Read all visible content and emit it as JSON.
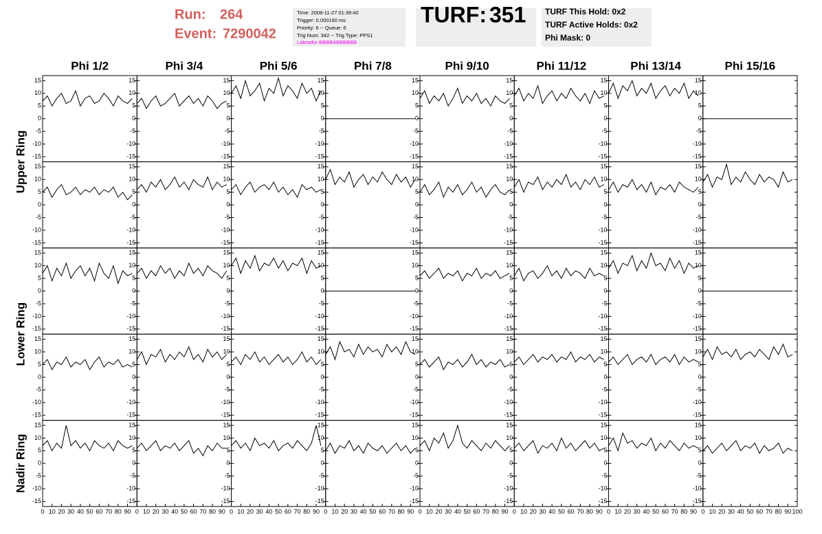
{
  "header": {
    "run_label": "Run:",
    "run": 264,
    "event_label": "Event:",
    "event": 7290042,
    "info": [
      "Time: 2008-11-27 01:39:40",
      "Trigger: 0.000160 ms",
      "Priority: 6 -- Queue: 6",
      "Trig Num: 342 -- Trig Type: PPS1"
    ],
    "labrador": "Labrador BBBBABBBBBB",
    "turf_label": "TURF:",
    "turf": 351,
    "turf_info": [
      "TURF This Hold: 0x2",
      "TURF Active Holds: 0x2",
      "Phi Mask: 0"
    ]
  },
  "grid": {
    "columns": [
      "Phi 1/2",
      "Phi 3/4",
      "Phi 5/6",
      "Phi 7/8",
      "Phi 9/10",
      "Phi 11/12",
      "Phi 13/14",
      "Phi 15/16"
    ],
    "row_labels": [
      "Upper Ring",
      "Lower Ring",
      "Nadir Ring"
    ],
    "ylim": [
      -17,
      17
    ],
    "yticks": [
      -15,
      -10,
      -5,
      0,
      5,
      10,
      15
    ],
    "xlim": [
      0,
      100
    ],
    "xticks": [
      0,
      10,
      20,
      30,
      40,
      50,
      60,
      70,
      80,
      90,
      100
    ],
    "x": [
      0,
      5,
      10,
      15,
      20,
      25,
      30,
      35,
      40,
      45,
      50,
      55,
      60,
      65,
      70,
      75,
      80,
      85,
      90,
      95
    ],
    "panels": [
      [
        [
          7,
          9,
          5,
          8,
          10,
          6,
          7,
          11,
          5,
          8,
          9,
          6,
          7,
          10,
          8,
          5,
          9,
          7,
          6,
          8
        ],
        [
          6,
          8,
          4,
          7,
          9,
          5,
          6,
          8,
          10,
          5,
          7,
          9,
          6,
          8,
          5,
          9,
          7,
          4,
          6,
          7
        ],
        [
          10,
          13,
          8,
          15,
          9,
          11,
          14,
          7,
          12,
          10,
          16,
          9,
          13,
          11,
          8,
          14,
          10,
          12,
          7,
          11
        ],
        [
          0,
          0,
          0,
          0,
          0,
          0,
          0,
          0,
          0,
          0,
          0,
          0,
          0,
          0,
          0,
          0,
          0,
          0,
          0,
          0
        ],
        [
          8,
          11,
          6,
          9,
          7,
          10,
          5,
          8,
          12,
          6,
          9,
          7,
          10,
          6,
          8,
          5,
          9,
          7,
          6,
          8
        ],
        [
          9,
          12,
          7,
          10,
          8,
          13,
          6,
          9,
          11,
          7,
          10,
          8,
          12,
          9,
          7,
          10,
          6,
          11,
          8,
          9
        ],
        [
          10,
          14,
          8,
          13,
          11,
          15,
          9,
          12,
          10,
          14,
          8,
          11,
          13,
          9,
          12,
          10,
          14,
          8,
          11,
          9
        ],
        [
          0,
          0,
          0,
          0,
          0,
          0,
          0,
          0,
          0,
          0,
          0,
          0,
          0,
          0,
          0,
          0,
          0,
          0,
          0,
          0
        ]
      ],
      [
        [
          5,
          7,
          3,
          6,
          8,
          4,
          5,
          7,
          4,
          6,
          5,
          7,
          4,
          6,
          5,
          7,
          3,
          5,
          2,
          4
        ],
        [
          6,
          8,
          5,
          9,
          7,
          10,
          6,
          8,
          11,
          7,
          9,
          6,
          10,
          8,
          7,
          11,
          6,
          9,
          7,
          8
        ],
        [
          6,
          8,
          4,
          7,
          9,
          5,
          7,
          8,
          6,
          9,
          5,
          7,
          4,
          6,
          3,
          8,
          6,
          7,
          5,
          6
        ],
        [
          10,
          14,
          8,
          11,
          9,
          13,
          7,
          10,
          12,
          8,
          11,
          9,
          13,
          10,
          8,
          12,
          9,
          11,
          7,
          10
        ],
        [
          5,
          8,
          4,
          6,
          9,
          3,
          7,
          5,
          8,
          4,
          6,
          9,
          5,
          7,
          3,
          6,
          8,
          5,
          4,
          6
        ],
        [
          7,
          10,
          5,
          9,
          8,
          11,
          6,
          9,
          7,
          10,
          8,
          12,
          7,
          9,
          6,
          10,
          8,
          11,
          7,
          8
        ],
        [
          6,
          9,
          5,
          8,
          7,
          10,
          6,
          8,
          5,
          9,
          4,
          7,
          6,
          8,
          5,
          9,
          7,
          6,
          5,
          7
        ],
        [
          9,
          12,
          7,
          11,
          10,
          16,
          8,
          11,
          9,
          13,
          10,
          8,
          12,
          9,
          11,
          10,
          7,
          13,
          9,
          10
        ]
      ],
      [
        [
          7,
          10,
          4,
          9,
          6,
          11,
          5,
          8,
          10,
          6,
          9,
          4,
          11,
          7,
          5,
          10,
          3,
          8,
          6,
          7
        ],
        [
          7,
          9,
          5,
          8,
          6,
          10,
          7,
          9,
          5,
          8,
          6,
          11,
          7,
          9,
          6,
          10,
          8,
          7,
          5,
          8
        ],
        [
          10,
          13,
          7,
          12,
          9,
          14,
          8,
          11,
          10,
          13,
          9,
          12,
          8,
          11,
          10,
          13,
          7,
          12,
          9,
          10
        ],
        [
          0,
          0,
          0,
          0,
          0,
          0,
          0,
          0,
          0,
          0,
          0,
          0,
          0,
          0,
          0,
          0,
          0,
          0,
          0,
          0
        ],
        [
          6,
          8,
          5,
          7,
          9,
          5,
          7,
          6,
          8,
          4,
          7,
          6,
          9,
          5,
          7,
          6,
          8,
          5,
          6,
          7
        ],
        [
          6,
          9,
          4,
          7,
          8,
          5,
          7,
          10,
          6,
          8,
          5,
          9,
          6,
          8,
          7,
          5,
          9,
          6,
          7,
          6
        ],
        [
          9,
          12,
          7,
          11,
          10,
          14,
          8,
          12,
          9,
          15,
          10,
          11,
          8,
          13,
          9,
          12,
          7,
          11,
          9,
          10
        ],
        [
          0,
          0,
          0,
          0,
          0,
          0,
          0,
          0,
          0,
          0,
          0,
          0,
          0,
          0,
          0,
          0,
          0,
          0,
          0,
          0
        ]
      ],
      [
        [
          5,
          7,
          3,
          6,
          5,
          8,
          4,
          6,
          5,
          7,
          3,
          6,
          8,
          4,
          6,
          5,
          7,
          4,
          5,
          4
        ],
        [
          7,
          10,
          5,
          9,
          8,
          11,
          6,
          9,
          7,
          10,
          8,
          12,
          7,
          9,
          6,
          11,
          8,
          10,
          7,
          9
        ],
        [
          6,
          8,
          5,
          9,
          7,
          10,
          6,
          8,
          5,
          7,
          9,
          6,
          8,
          5,
          7,
          10,
          6,
          8,
          5,
          7
        ],
        [
          9,
          12,
          7,
          14,
          10,
          11,
          8,
          13,
          9,
          12,
          10,
          11,
          8,
          13,
          10,
          12,
          9,
          14,
          10,
          9
        ],
        [
          5,
          7,
          4,
          6,
          8,
          3,
          6,
          5,
          7,
          4,
          6,
          9,
          5,
          7,
          4,
          6,
          5,
          7,
          4,
          5
        ],
        [
          6,
          8,
          5,
          7,
          9,
          6,
          8,
          7,
          9,
          6,
          8,
          7,
          10,
          6,
          8,
          7,
          9,
          6,
          8,
          7
        ],
        [
          6,
          8,
          5,
          7,
          9,
          5,
          7,
          8,
          6,
          9,
          5,
          7,
          8,
          6,
          9,
          5,
          8,
          6,
          7,
          6
        ],
        [
          8,
          11,
          7,
          12,
          9,
          10,
          8,
          11,
          7,
          9,
          10,
          8,
          11,
          9,
          7,
          12,
          9,
          13,
          8,
          9
        ]
      ],
      [
        [
          7,
          9,
          5,
          8,
          6,
          15,
          7,
          9,
          6,
          8,
          5,
          9,
          7,
          6,
          8,
          5,
          9,
          7,
          6,
          7
        ],
        [
          6,
          8,
          5,
          7,
          9,
          5,
          7,
          6,
          8,
          5,
          7,
          9,
          4,
          6,
          3,
          7,
          5,
          8,
          6,
          6
        ],
        [
          7,
          9,
          6,
          8,
          5,
          10,
          7,
          8,
          6,
          9,
          5,
          7,
          8,
          6,
          9,
          7,
          5,
          8,
          15,
          7
        ],
        [
          5,
          8,
          4,
          7,
          6,
          9,
          5,
          7,
          4,
          8,
          6,
          5,
          7,
          4,
          6,
          8,
          5,
          7,
          4,
          6
        ],
        [
          7,
          9,
          5,
          10,
          8,
          12,
          6,
          9,
          15,
          8,
          6,
          9,
          7,
          5,
          8,
          6,
          9,
          7,
          5,
          7
        ],
        [
          6,
          8,
          5,
          7,
          9,
          4,
          7,
          6,
          8,
          5,
          10,
          6,
          8,
          5,
          7,
          9,
          6,
          8,
          5,
          6
        ],
        [
          7,
          10,
          5,
          12,
          8,
          9,
          6,
          8,
          7,
          10,
          5,
          8,
          6,
          9,
          7,
          5,
          8,
          6,
          7,
          6
        ],
        [
          5,
          7,
          4,
          6,
          8,
          5,
          7,
          9,
          5,
          7,
          6,
          8,
          4,
          7,
          5,
          6,
          8,
          4,
          6,
          5
        ]
      ]
    ],
    "row_spans": [
      [
        0,
        1
      ],
      [
        2,
        3
      ],
      [
        4,
        4
      ]
    ]
  }
}
